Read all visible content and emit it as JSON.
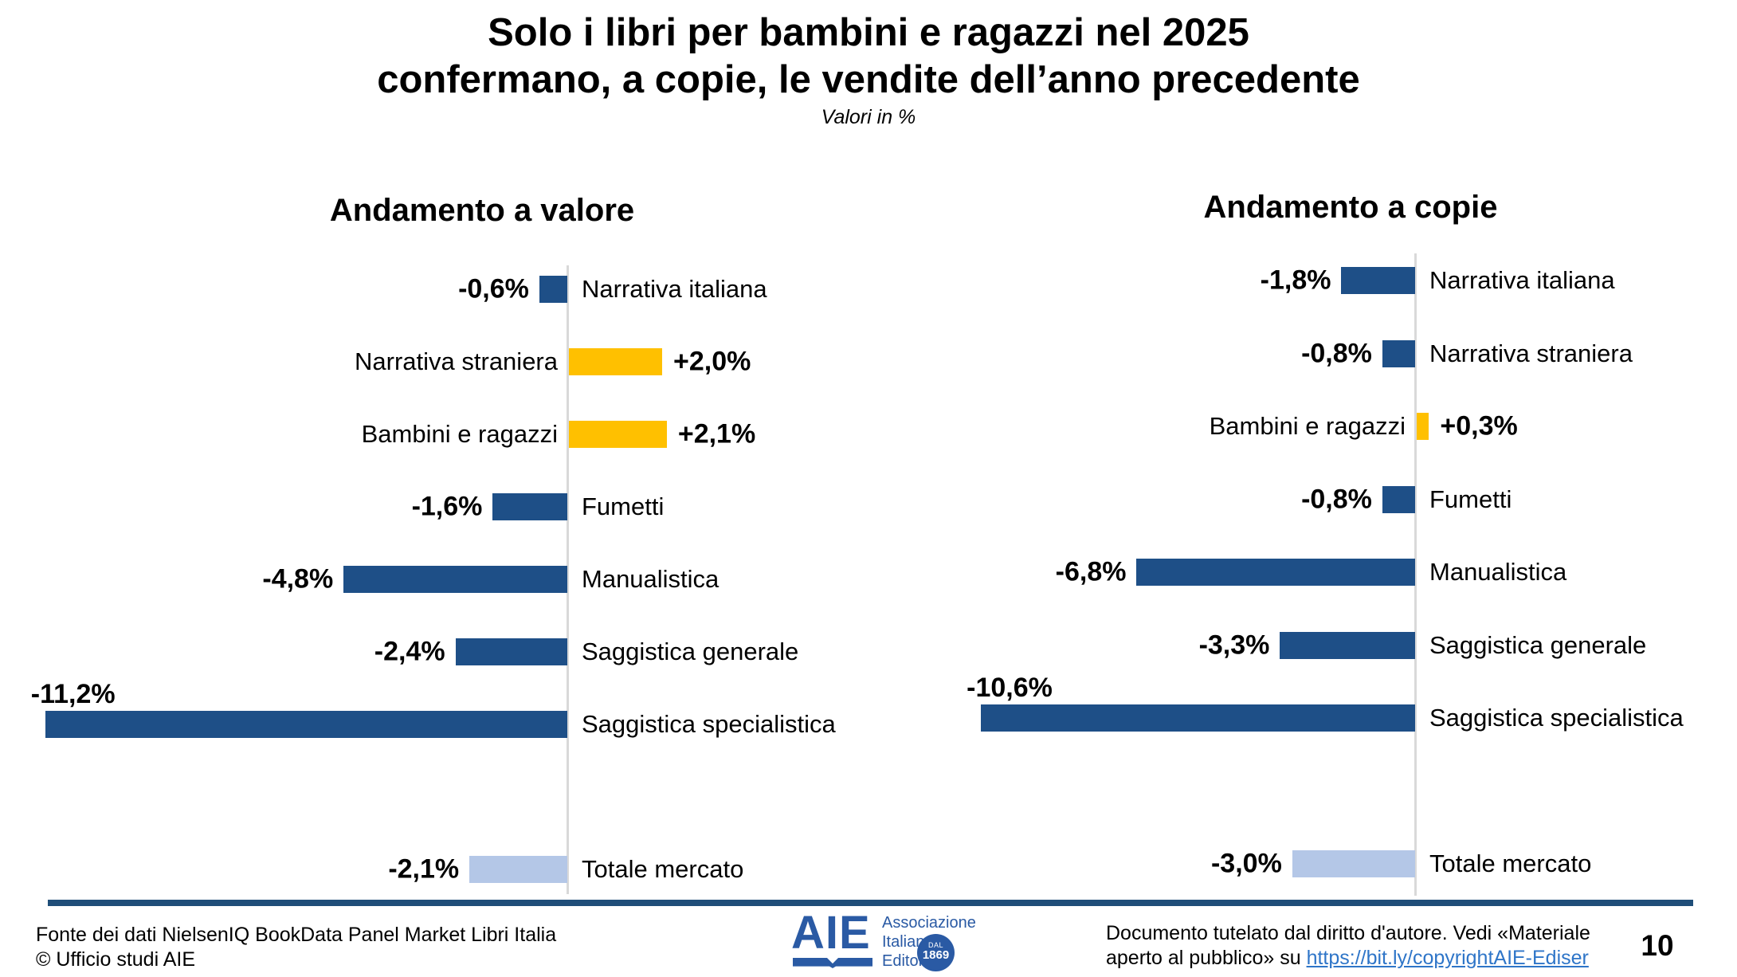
{
  "title": {
    "line1": "Solo i libri per bambini e ragazzi nel 2025",
    "line2": "confermano, a copie, le vendite dell’anno precedente",
    "subtitle": "Valori in %"
  },
  "chart_data": [
    {
      "type": "bar",
      "orientation": "horizontal",
      "title": "Andamento a valore",
      "unit": "%",
      "xlim": [
        -12,
        3
      ],
      "baseline": 0,
      "grid": false,
      "categories": [
        "Narrativa italiana",
        "Narrativa straniera",
        "Bambini e ragazzi",
        "Fumetti",
        "Manualistica",
        "Saggistica generale",
        "Saggistica specialistica",
        "Totale mercato"
      ],
      "values": [
        -0.6,
        2.0,
        2.1,
        -1.6,
        -4.8,
        -2.4,
        -11.2,
        -2.1
      ],
      "rows": [
        {
          "category": "Narrativa italiana",
          "value": -0.6,
          "label": "-0,6%",
          "color": "negative",
          "label_pos": "side"
        },
        {
          "category": "Narrativa straniera",
          "value": 2.0,
          "label": "+2,0%",
          "color": "positive",
          "label_pos": "side"
        },
        {
          "category": "Bambini e ragazzi",
          "value": 2.1,
          "label": "+2,1%",
          "color": "positive",
          "label_pos": "side"
        },
        {
          "category": "Fumetti",
          "value": -1.6,
          "label": "-1,6%",
          "color": "negative",
          "label_pos": "side"
        },
        {
          "category": "Manualistica",
          "value": -4.8,
          "label": "-4,8%",
          "color": "negative",
          "label_pos": "side"
        },
        {
          "category": "Saggistica generale",
          "value": -2.4,
          "label": "-2,4%",
          "color": "negative",
          "label_pos": "side"
        },
        {
          "category": "Saggistica specialistica",
          "value": -11.2,
          "label": "-11,2%",
          "color": "negative",
          "label_pos": "above"
        },
        {
          "category": "Totale mercato",
          "value": -2.1,
          "label": "-2,1%",
          "color": "total",
          "label_pos": "side",
          "gap_before": true
        }
      ]
    },
    {
      "type": "bar",
      "orientation": "horizontal",
      "title": "Andamento a copie",
      "unit": "%",
      "xlim": [
        -11,
        1
      ],
      "baseline": 0,
      "grid": false,
      "categories": [
        "Narrativa italiana",
        "Narrativa straniera",
        "Bambini e ragazzi",
        "Fumetti",
        "Manualistica",
        "Saggistica generale",
        "Saggistica specialistica",
        "Totale mercato"
      ],
      "values": [
        -1.8,
        -0.8,
        0.3,
        -0.8,
        -6.8,
        -3.3,
        -10.6,
        -3.0
      ],
      "rows": [
        {
          "category": "Narrativa italiana",
          "value": -1.8,
          "label": "-1,8%",
          "color": "negative",
          "label_pos": "side"
        },
        {
          "category": "Narrativa straniera",
          "value": -0.8,
          "label": "-0,8%",
          "color": "negative",
          "label_pos": "side"
        },
        {
          "category": "Bambini e ragazzi",
          "value": 0.3,
          "label": "+0,3%",
          "color": "positive",
          "label_pos": "side"
        },
        {
          "category": "Fumetti",
          "value": -0.8,
          "label": "-0,8%",
          "color": "negative",
          "label_pos": "side"
        },
        {
          "category": "Manualistica",
          "value": -6.8,
          "label": "-6,8%",
          "color": "negative",
          "label_pos": "side"
        },
        {
          "category": "Saggistica generale",
          "value": -3.3,
          "label": "-3,3%",
          "color": "negative",
          "label_pos": "side"
        },
        {
          "category": "Saggistica specialistica",
          "value": -10.6,
          "label": "-10,6%",
          "color": "negative",
          "label_pos": "above"
        },
        {
          "category": "Totale mercato",
          "value": -3.0,
          "label": "-3,0%",
          "color": "total",
          "label_pos": "side",
          "gap_before": true
        }
      ]
    }
  ],
  "colors": {
    "bar_negative": "#1E4F87",
    "bar_positive": "#FFC000",
    "bar_total": "#B4C7E7",
    "axis": "#D9D9D9",
    "divider": "#1F4E79",
    "link": "#2E75C8",
    "logo_blue": "#2A5AA4"
  },
  "footer": {
    "source_line1": "Fonte dei dati NielsenIQ BookData Panel Market Libri Italia",
    "source_line2": "© Ufficio studi AIE",
    "copyright_line1": "Documento tutelato dal diritto d'autore. Vedi «Materiale",
    "copyright_line2_prefix": "aperto al pubblico» su ",
    "copyright_link": "https://bit.ly/copyrightAIE-Ediser"
  },
  "logo": {
    "acronym": "AIE",
    "name_line1": "Associazione",
    "name_line2": "Italiana",
    "name_line3": "Editori",
    "badge_line1": "DAL",
    "badge_line2": "1869"
  },
  "page_number": "10"
}
